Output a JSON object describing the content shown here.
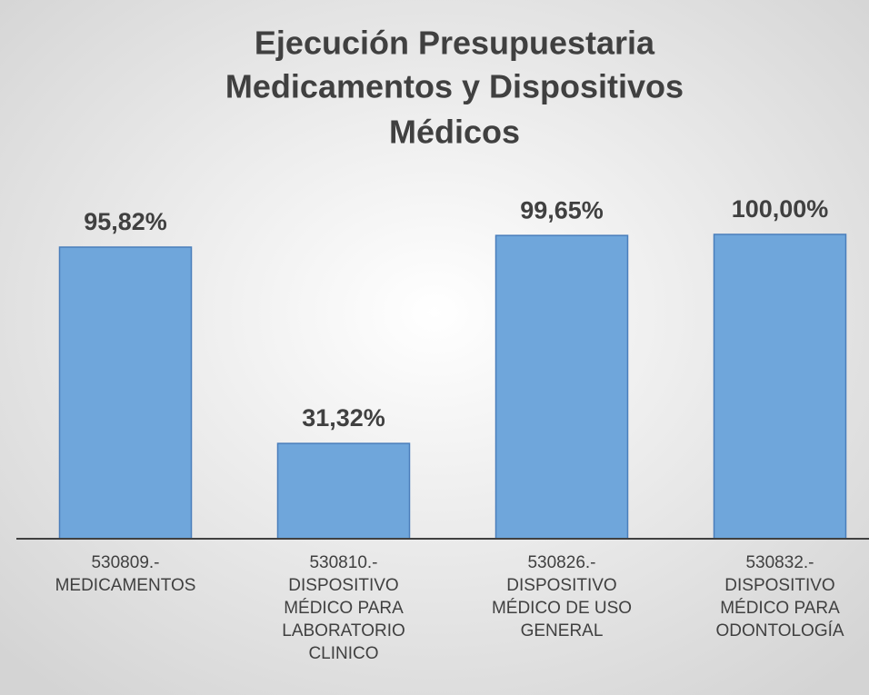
{
  "chart_data": {
    "type": "bar",
    "title": [
      "Ejecución Presupuestaria",
      "Medicamentos y Dispositivos",
      "Médicos"
    ],
    "categories": [
      "530809.- MEDICAMENTOS",
      "530810.- DISPOSITIVO MÉDICO PARA LABORATORIO CLINICO",
      "530826.- DISPOSITIVO MÉDICO DE USO GENERAL",
      "530832.- DISPOSITIVO MÉDICO PARA ODONTOLOGÍA"
    ],
    "values": [
      95.82,
      31.32,
      99.65,
      100
    ],
    "value_labels": [
      "95,82%",
      "31,32%",
      "99,65%",
      "100,00%"
    ],
    "color": "#6fa6db",
    "ylim": [
      0,
      100
    ]
  }
}
